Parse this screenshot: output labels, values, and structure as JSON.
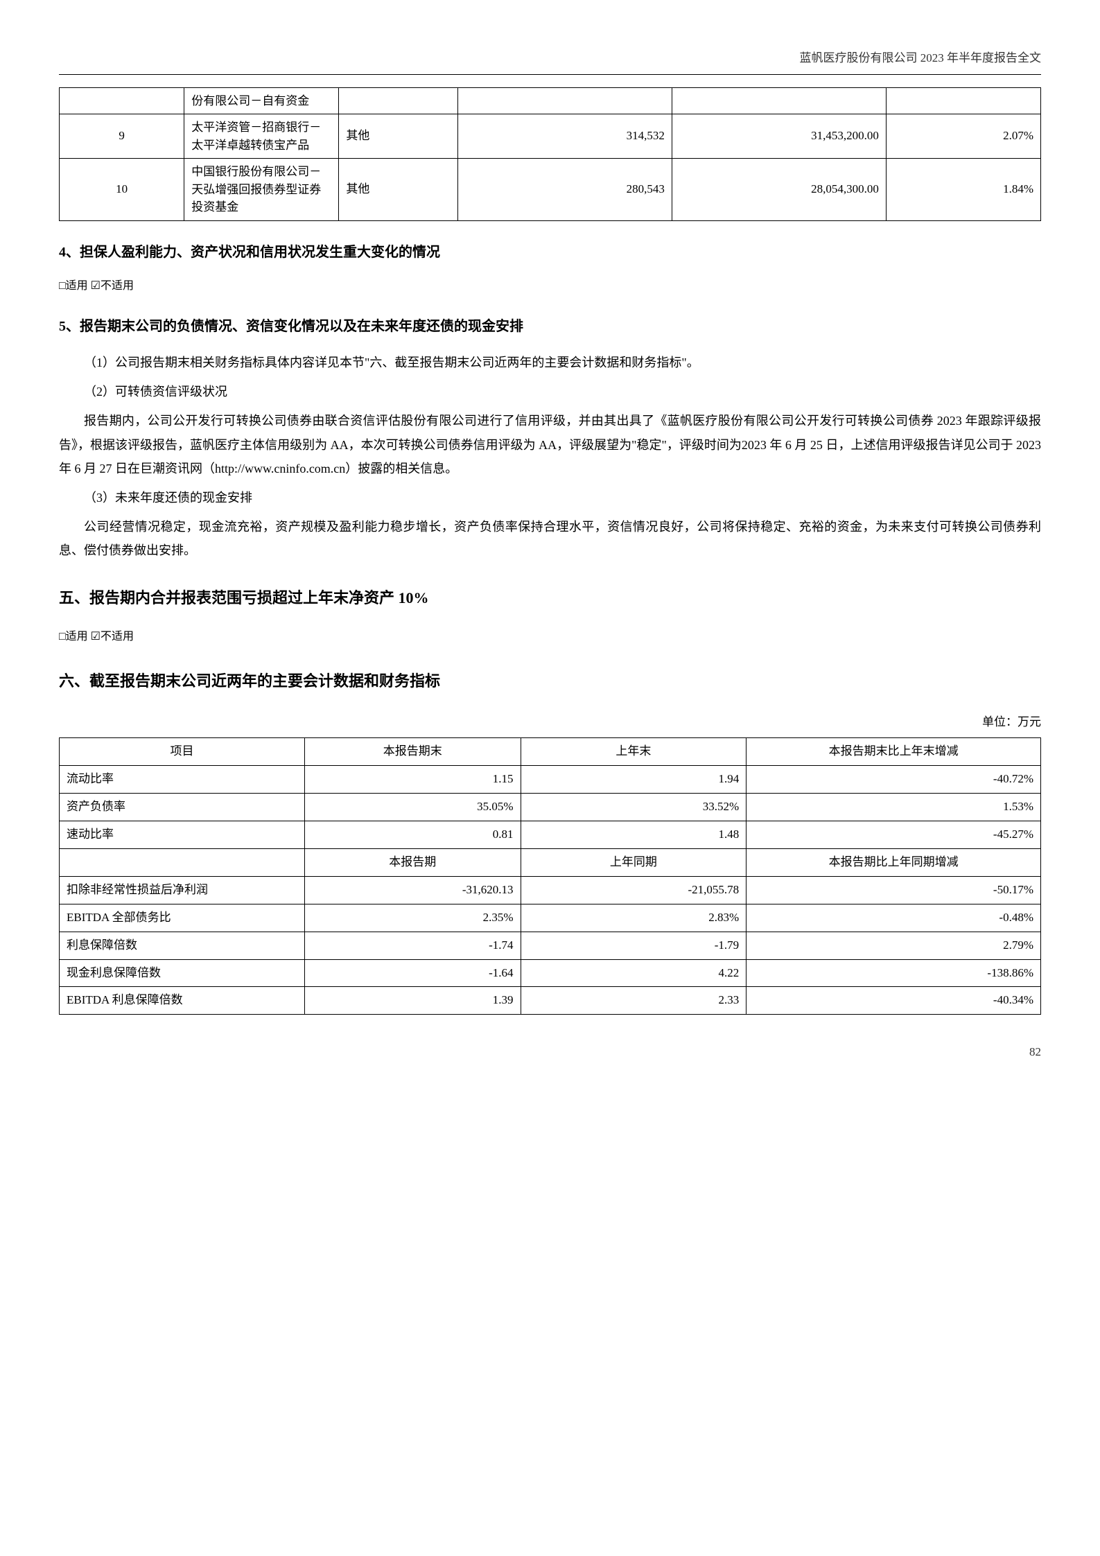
{
  "header": "蓝帆医疗股份有限公司 2023 年半年度报告全文",
  "table1": {
    "rows": [
      {
        "n": "",
        "name": "份有限公司－自有资金",
        "type": "",
        "v3": "",
        "v4": "",
        "v5": ""
      },
      {
        "n": "9",
        "name": "太平洋资管－招商银行－太平洋卓越转债宝产品",
        "type": "其他",
        "v3": "314,532",
        "v4": "31,453,200.00",
        "v5": "2.07%"
      },
      {
        "n": "10",
        "name": "中国银行股份有限公司－天弘增强回报债券型证券投资基金",
        "type": "其他",
        "v3": "280,543",
        "v4": "28,054,300.00",
        "v5": "1.84%"
      }
    ]
  },
  "s4_title": "4、担保人盈利能力、资产状况和信用状况发生重大变化的情况",
  "check_text": "□适用 ☑不适用",
  "s5_title": "5、报告期末公司的负债情况、资信变化情况以及在未来年度还债的现金安排",
  "p1": "（1）公司报告期末相关财务指标具体内容详见本节\"六、截至报告期末公司近两年的主要会计数据和财务指标\"。",
  "p2": "（2）可转债资信评级状况",
  "p3": "报告期内，公司公开发行可转换公司债券由联合资信评估股份有限公司进行了信用评级，并由其出具了《蓝帆医疗股份有限公司公开发行可转换公司债券 2023 年跟踪评级报告》，根据该评级报告，蓝帆医疗主体信用级别为 AA，本次可转换公司债券信用评级为 AA，评级展望为\"稳定\"，评级时间为2023 年 6 月 25 日，上述信用评级报告详见公司于 2023 年 6 月 27 日在巨潮资讯网（http://www.cninfo.com.cn）披露的相关信息。",
  "p4": "（3）未来年度还债的现金安排",
  "p5": "公司经营情况稳定，现金流充裕，资产规模及盈利能力稳步增长，资产负债率保持合理水平，资信情况良好，公司将保持稳定、充裕的资金，为未来支付可转换公司债券利息、偿付债券做出安排。",
  "s_five": "五、报告期内合并报表范围亏损超过上年末净资产 10%",
  "s_six": "六、截至报告期末公司近两年的主要会计数据和财务指标",
  "unit": "单位：万元",
  "table2": {
    "h1": [
      "项目",
      "本报告期末",
      "上年末",
      "本报告期末比上年末增减"
    ],
    "r1": [
      {
        "a": "流动比率",
        "b": "1.15",
        "c": "1.94",
        "d": "-40.72%"
      },
      {
        "a": "资产负债率",
        "b": "35.05%",
        "c": "33.52%",
        "d": "1.53%"
      },
      {
        "a": "速动比率",
        "b": "0.81",
        "c": "1.48",
        "d": "-45.27%"
      }
    ],
    "h2": [
      "",
      "本报告期",
      "上年同期",
      "本报告期比上年同期增减"
    ],
    "r2": [
      {
        "a": "扣除非经常性损益后净利润",
        "b": "-31,620.13",
        "c": "-21,055.78",
        "d": "-50.17%"
      },
      {
        "a": "EBITDA 全部债务比",
        "b": "2.35%",
        "c": "2.83%",
        "d": "-0.48%"
      },
      {
        "a": "利息保障倍数",
        "b": "-1.74",
        "c": "-1.79",
        "d": "2.79%"
      },
      {
        "a": "现金利息保障倍数",
        "b": "-1.64",
        "c": "4.22",
        "d": "-138.86%"
      },
      {
        "a": "EBITDA 利息保障倍数",
        "b": "1.39",
        "c": "2.33",
        "d": "-40.34%"
      }
    ]
  },
  "pagenum": "82"
}
